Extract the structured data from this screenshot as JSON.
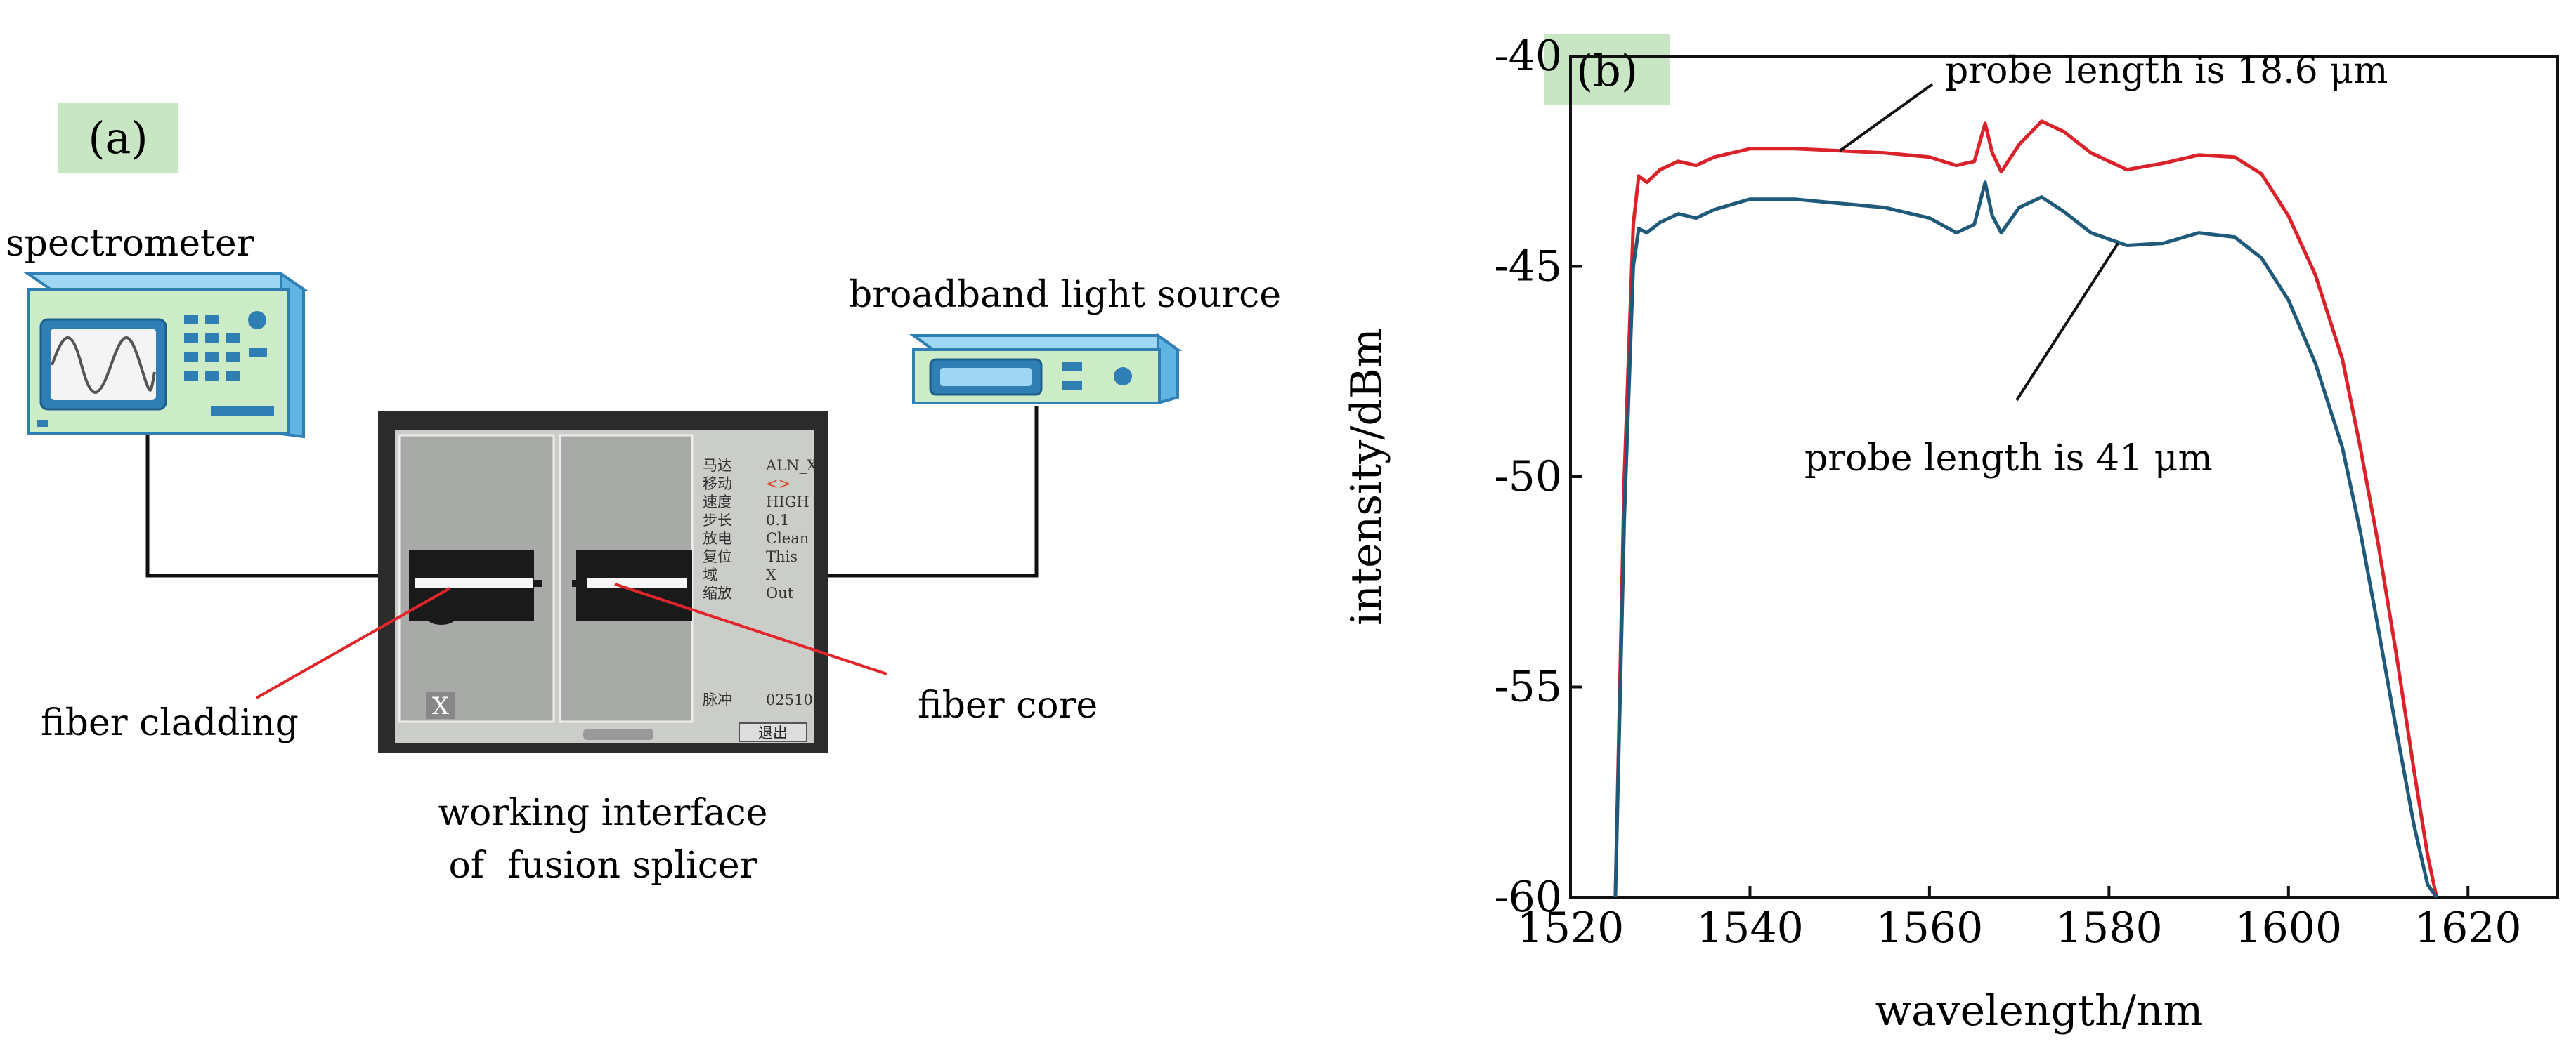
{
  "panel_a": {
    "label": "(a)",
    "spectrometer_label": "spectrometer",
    "light_source_label": "broadband light source",
    "fiber_cladding_label": "fiber cladding",
    "fiber_core_label": "fiber core",
    "interface_caption_line1": "working interface",
    "interface_caption_line2": "of  fusion splicer",
    "screen": {
      "menu": [
        {
          "key": "马达",
          "value": "ALN_X"
        },
        {
          "key": "移动",
          "value": "<>"
        },
        {
          "key": "速度",
          "value": "HIGH"
        },
        {
          "key": "步长",
          "value": "0.1"
        },
        {
          "key": "放电",
          "value": "Clean"
        },
        {
          "key": "复位",
          "value": "This"
        },
        {
          "key": "域",
          "value": "X"
        },
        {
          "key": "缩放",
          "value": "Out"
        }
      ],
      "pulse_key": "脉冲",
      "pulse_value": "02510",
      "exit_button": "退出",
      "x_button": "X"
    }
  },
  "chart_data": {
    "type": "line",
    "panel_label": "(b)",
    "title": "",
    "xlabel": "wavelength/nm",
    "ylabel": "intensity/dBm",
    "xlim": [
      1520,
      1630
    ],
    "ylim": [
      -60,
      -40
    ],
    "xticks": [
      1520,
      1540,
      1560,
      1580,
      1600,
      1620
    ],
    "yticks": [
      -40,
      -45,
      -50,
      -55,
      -60
    ],
    "series": [
      {
        "name": "probe length is 18.6 μm",
        "color": "#d9222a",
        "x": [
          1525.0,
          1526.0,
          1527.0,
          1527.6,
          1528.5,
          1530,
          1532,
          1534,
          1536,
          1540,
          1545,
          1550,
          1555,
          1560,
          1563,
          1565,
          1566.2,
          1567,
          1568,
          1570,
          1572.5,
          1575,
          1578,
          1582,
          1586,
          1590,
          1594,
          1597,
          1600,
          1603,
          1606,
          1608,
          1610,
          1612,
          1614,
          1615.5,
          1616.5
        ],
        "values": [
          -60,
          -50,
          -44,
          -42.85,
          -43.0,
          -42.7,
          -42.5,
          -42.6,
          -42.4,
          -42.2,
          -42.2,
          -42.25,
          -42.3,
          -42.4,
          -42.6,
          -42.5,
          -41.6,
          -42.3,
          -42.75,
          -42.1,
          -41.55,
          -41.8,
          -42.3,
          -42.7,
          -42.55,
          -42.35,
          -42.4,
          -42.8,
          -43.8,
          -45.2,
          -47.2,
          -49.3,
          -51.6,
          -54.2,
          -57.0,
          -59.0,
          -60
        ]
      },
      {
        "name": "probe length is 41 μm",
        "color": "#1f5a7a",
        "x": [
          1525.0,
          1526.0,
          1527.0,
          1527.6,
          1528.5,
          1530,
          1532,
          1534,
          1536,
          1540,
          1545,
          1550,
          1555,
          1560,
          1563,
          1565,
          1566.2,
          1567,
          1568,
          1570,
          1572.5,
          1575,
          1578,
          1582,
          1586,
          1590,
          1594,
          1597,
          1600,
          1603,
          1606,
          1608,
          1610,
          1612,
          1614,
          1615.5,
          1616.5
        ],
        "values": [
          -60,
          -51,
          -45,
          -44.1,
          -44.2,
          -43.95,
          -43.75,
          -43.85,
          -43.65,
          -43.4,
          -43.4,
          -43.5,
          -43.6,
          -43.85,
          -44.2,
          -44.0,
          -43.0,
          -43.8,
          -44.2,
          -43.6,
          -43.35,
          -43.7,
          -44.2,
          -44.5,
          -44.45,
          -44.2,
          -44.3,
          -44.8,
          -45.8,
          -47.3,
          -49.3,
          -51.3,
          -53.6,
          -56.0,
          -58.3,
          -59.7,
          -60
        ]
      }
    ],
    "annotations": [
      {
        "text": "probe length is 18.6 μm",
        "series": 0
      },
      {
        "text": "probe length is 41 μm",
        "series": 1
      }
    ]
  }
}
